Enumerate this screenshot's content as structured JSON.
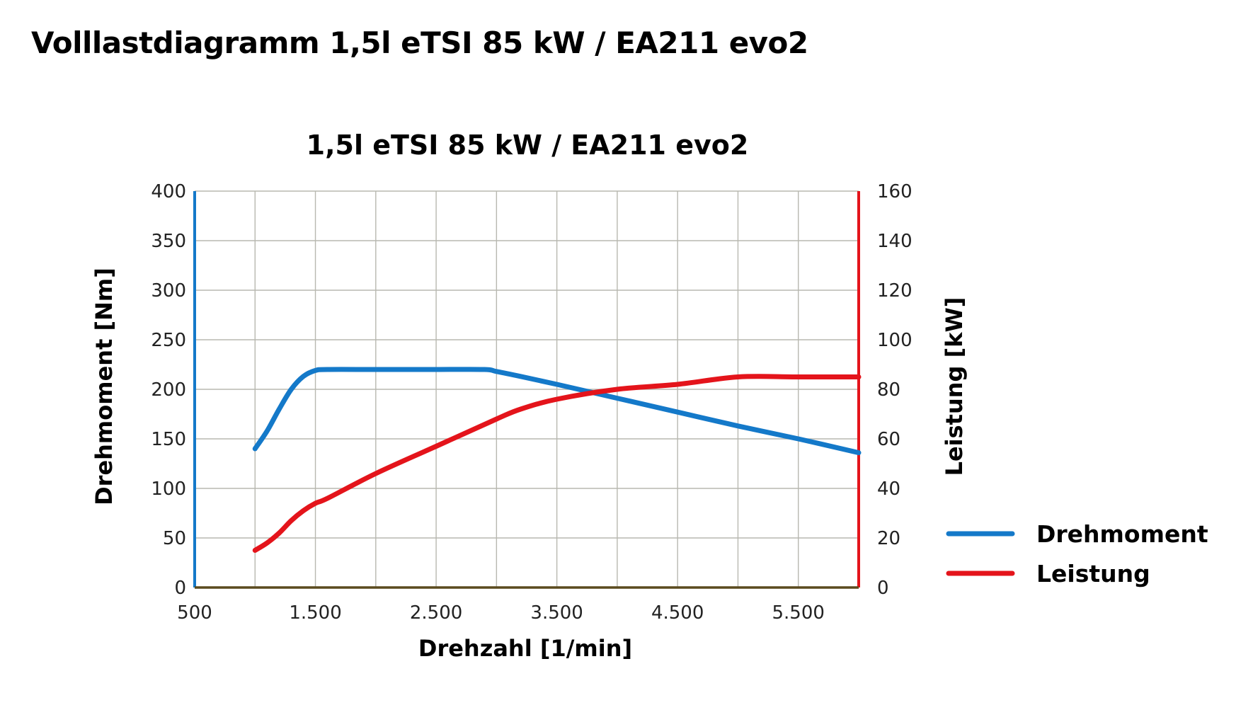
{
  "page_title": "Volllastdiagramm 1,5l eTSI 85 kW / EA211 evo2",
  "colors": {
    "torque": "#1479c9",
    "power": "#e4141b",
    "grid": "#b8b8b0",
    "baseline": "#5a4a1e"
  },
  "chart_data": {
    "type": "line",
    "title": "1,5l eTSI 85 kW / EA211 evo2",
    "xlabel": "Drehzahl [1/min]",
    "ylabel": "Drehmoment [Nm]",
    "y2label": "Leistung [kW]",
    "xlim": [
      500,
      6000
    ],
    "ylim": [
      0,
      400
    ],
    "y2lim": [
      0,
      160
    ],
    "grid": true,
    "legend_position": "right",
    "x_ticks": [
      500,
      1500,
      2500,
      3500,
      4500,
      5500
    ],
    "x_tick_labels": [
      "500",
      "1.500",
      "2.500",
      "3.500",
      "4.500",
      "5.500"
    ],
    "y_ticks": [
      0,
      50,
      100,
      150,
      200,
      250,
      300,
      350,
      400
    ],
    "y_tick_labels": [
      "0",
      "50",
      "100",
      "150",
      "200",
      "250",
      "300",
      "350",
      "400"
    ],
    "y2_ticks": [
      0,
      20,
      40,
      60,
      80,
      100,
      120,
      140,
      160
    ],
    "y2_tick_labels": [
      "0",
      "20",
      "40",
      "60",
      "80",
      "100",
      "120",
      "140",
      "160"
    ],
    "series": [
      {
        "name": "Drehmoment",
        "axis": "left",
        "x": [
          1000,
          1100,
          1200,
          1300,
          1400,
          1500,
          1600,
          2000,
          2500,
          2900,
          3000,
          3200,
          3500,
          4000,
          4500,
          5000,
          5500,
          6000
        ],
        "y": [
          140,
          158,
          180,
          200,
          213,
          219,
          220,
          220,
          220,
          220,
          218,
          213,
          205,
          191,
          177,
          163,
          150,
          136
        ]
      },
      {
        "name": "Leistung",
        "axis": "right",
        "x": [
          1000,
          1100,
          1200,
          1300,
          1400,
          1500,
          1600,
          2000,
          2500,
          3000,
          3200,
          3500,
          4000,
          4500,
          5000,
          5500,
          6000
        ],
        "y": [
          15,
          18,
          22,
          27,
          31,
          34,
          36,
          46,
          57,
          68,
          72,
          76,
          80,
          82,
          85,
          85,
          85
        ]
      }
    ]
  }
}
